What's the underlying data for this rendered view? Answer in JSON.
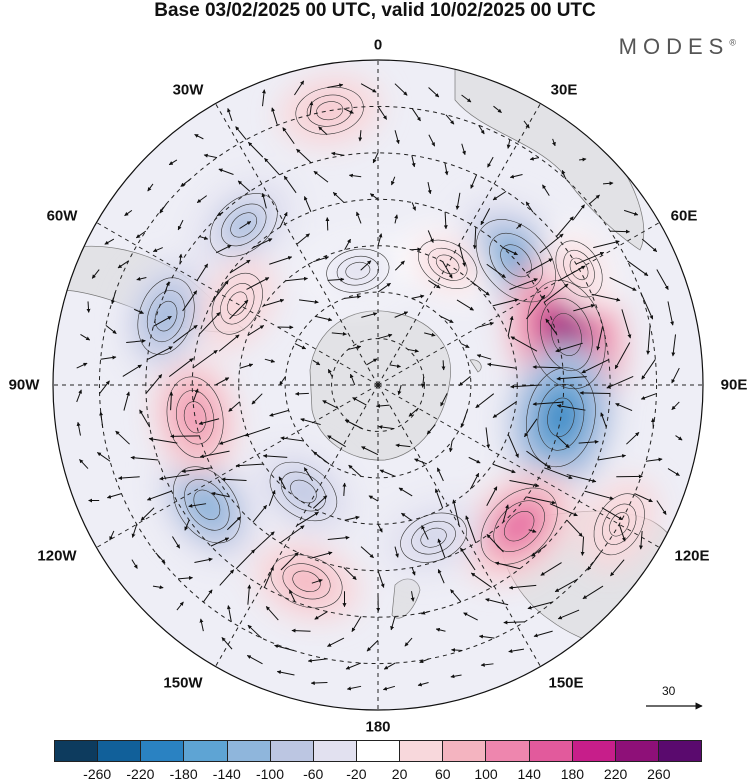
{
  "title": "Base 03/02/2025 00 UTC, valid 10/02/2025 00 UTC",
  "brand": "MODES",
  "brand_mark": "®",
  "lon_labels": {
    "top": "0",
    "e30": "30E",
    "e60": "60E",
    "e90": "90E",
    "e120": "120E",
    "e150": "150E",
    "bottom": "180",
    "w150": "150W",
    "w120": "120W",
    "w90": "90W",
    "w60": "60W",
    "w30": "30W"
  },
  "reference_vector": "30",
  "colorbar": {
    "labels": [
      "-260",
      "-220",
      "-180",
      "-140",
      "-100",
      "-60",
      "-20",
      "20",
      "60",
      "100",
      "140",
      "180",
      "220",
      "260"
    ],
    "colors": [
      "#0d3b5e",
      "#11609a",
      "#2a82c2",
      "#5ea4d4",
      "#8fb6dc",
      "#bcc6e2",
      "#e2e1f0",
      "#ffffff",
      "#f8d8dc",
      "#f4b4c0",
      "#ee86ae",
      "#e25a9c",
      "#c71e8a",
      "#8e1078",
      "#5a0a6e"
    ]
  },
  "anomaly_cells": [
    {
      "lat": -50,
      "lon": 48,
      "value": -170
    },
    {
      "lat": -48,
      "lon": 75,
      "value": 230
    },
    {
      "lat": -50,
      "lon": 100,
      "value": -190
    },
    {
      "lat": -47,
      "lon": 135,
      "value": 150
    },
    {
      "lat": -55,
      "lon": 160,
      "value": -70
    },
    {
      "lat": -45,
      "lon": -160,
      "value": 90
    },
    {
      "lat": -45,
      "lon": -125,
      "value": -130
    },
    {
      "lat": -50,
      "lon": -100,
      "value": 120
    },
    {
      "lat": -62,
      "lon": -145,
      "value": -90
    },
    {
      "lat": -42,
      "lon": -72,
      "value": -110
    },
    {
      "lat": -45,
      "lon": -40,
      "value": -100
    },
    {
      "lat": -30,
      "lon": -10,
      "value": 70
    },
    {
      "lat": -55,
      "lon": -60,
      "value": 60
    },
    {
      "lat": -60,
      "lon": 30,
      "value": 50
    },
    {
      "lat": -40,
      "lon": 60,
      "value": 40
    },
    {
      "lat": -30,
      "lon": 120,
      "value": 60
    },
    {
      "lat": -65,
      "lon": -10,
      "value": -50
    }
  ]
}
